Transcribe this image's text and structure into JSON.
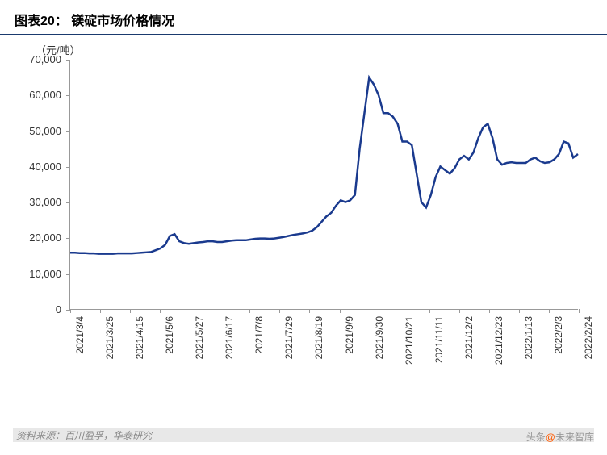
{
  "header": {
    "prefix": "图表20：",
    "title": "镁碇市场价格情况"
  },
  "chart": {
    "type": "line",
    "y_unit": "（元/吨）",
    "ylim": [
      0,
      70000
    ],
    "ytick_step": 10000,
    "yticks": [
      0,
      10000,
      20000,
      30000,
      40000,
      50000,
      60000,
      70000
    ],
    "ytick_labels": [
      "0",
      "10,000",
      "20,000",
      "30,000",
      "40,000",
      "50,000",
      "60,000",
      "70,000"
    ],
    "xticks": [
      "2021/3/4",
      "2021/3/25",
      "2021/4/15",
      "2021/5/6",
      "2021/5/27",
      "2021/6/17",
      "2021/7/8",
      "2021/7/29",
      "2021/8/19",
      "2021/9/9",
      "2021/9/30",
      "2021/10/21",
      "2021/11/11",
      "2021/12/2",
      "2021/12/23",
      "2022/1/13",
      "2022/2/3",
      "2022/2/24"
    ],
    "line_color": "#1a3a8e",
    "line_width": 2.5,
    "background_color": "#ffffff",
    "axis_color": "#999999",
    "text_color": "#333333",
    "data": [
      15800,
      15800,
      15700,
      15700,
      15600,
      15600,
      15500,
      15500,
      15500,
      15500,
      15600,
      15600,
      15600,
      15600,
      15700,
      15800,
      15900,
      16000,
      16500,
      17000,
      18000,
      20500,
      21000,
      19000,
      18500,
      18300,
      18500,
      18700,
      18800,
      19000,
      19000,
      18800,
      18800,
      19000,
      19200,
      19300,
      19300,
      19300,
      19500,
      19700,
      19800,
      19800,
      19700,
      19800,
      20000,
      20200,
      20500,
      20800,
      21000,
      21200,
      21500,
      22000,
      23000,
      24500,
      26000,
      27000,
      29000,
      30500,
      30000,
      30500,
      32000,
      45000,
      55000,
      65000,
      63000,
      60000,
      55000,
      55000,
      54000,
      52000,
      47000,
      47000,
      46000,
      38000,
      30000,
      28500,
      32000,
      37000,
      40000,
      39000,
      38000,
      39500,
      42000,
      43000,
      42000,
      44000,
      48000,
      51000,
      52000,
      48000,
      42000,
      40500,
      41000,
      41200,
      41000,
      41000,
      41000,
      42000,
      42500,
      41500,
      41000,
      41200,
      42000,
      43500,
      47000,
      46500,
      42500,
      43500
    ]
  },
  "footer": {
    "label": "资料来源：",
    "sources": "百川盈孚，华泰研究"
  },
  "watermark": {
    "prefix": "头条",
    "at": "@",
    "name": "未来智库"
  }
}
